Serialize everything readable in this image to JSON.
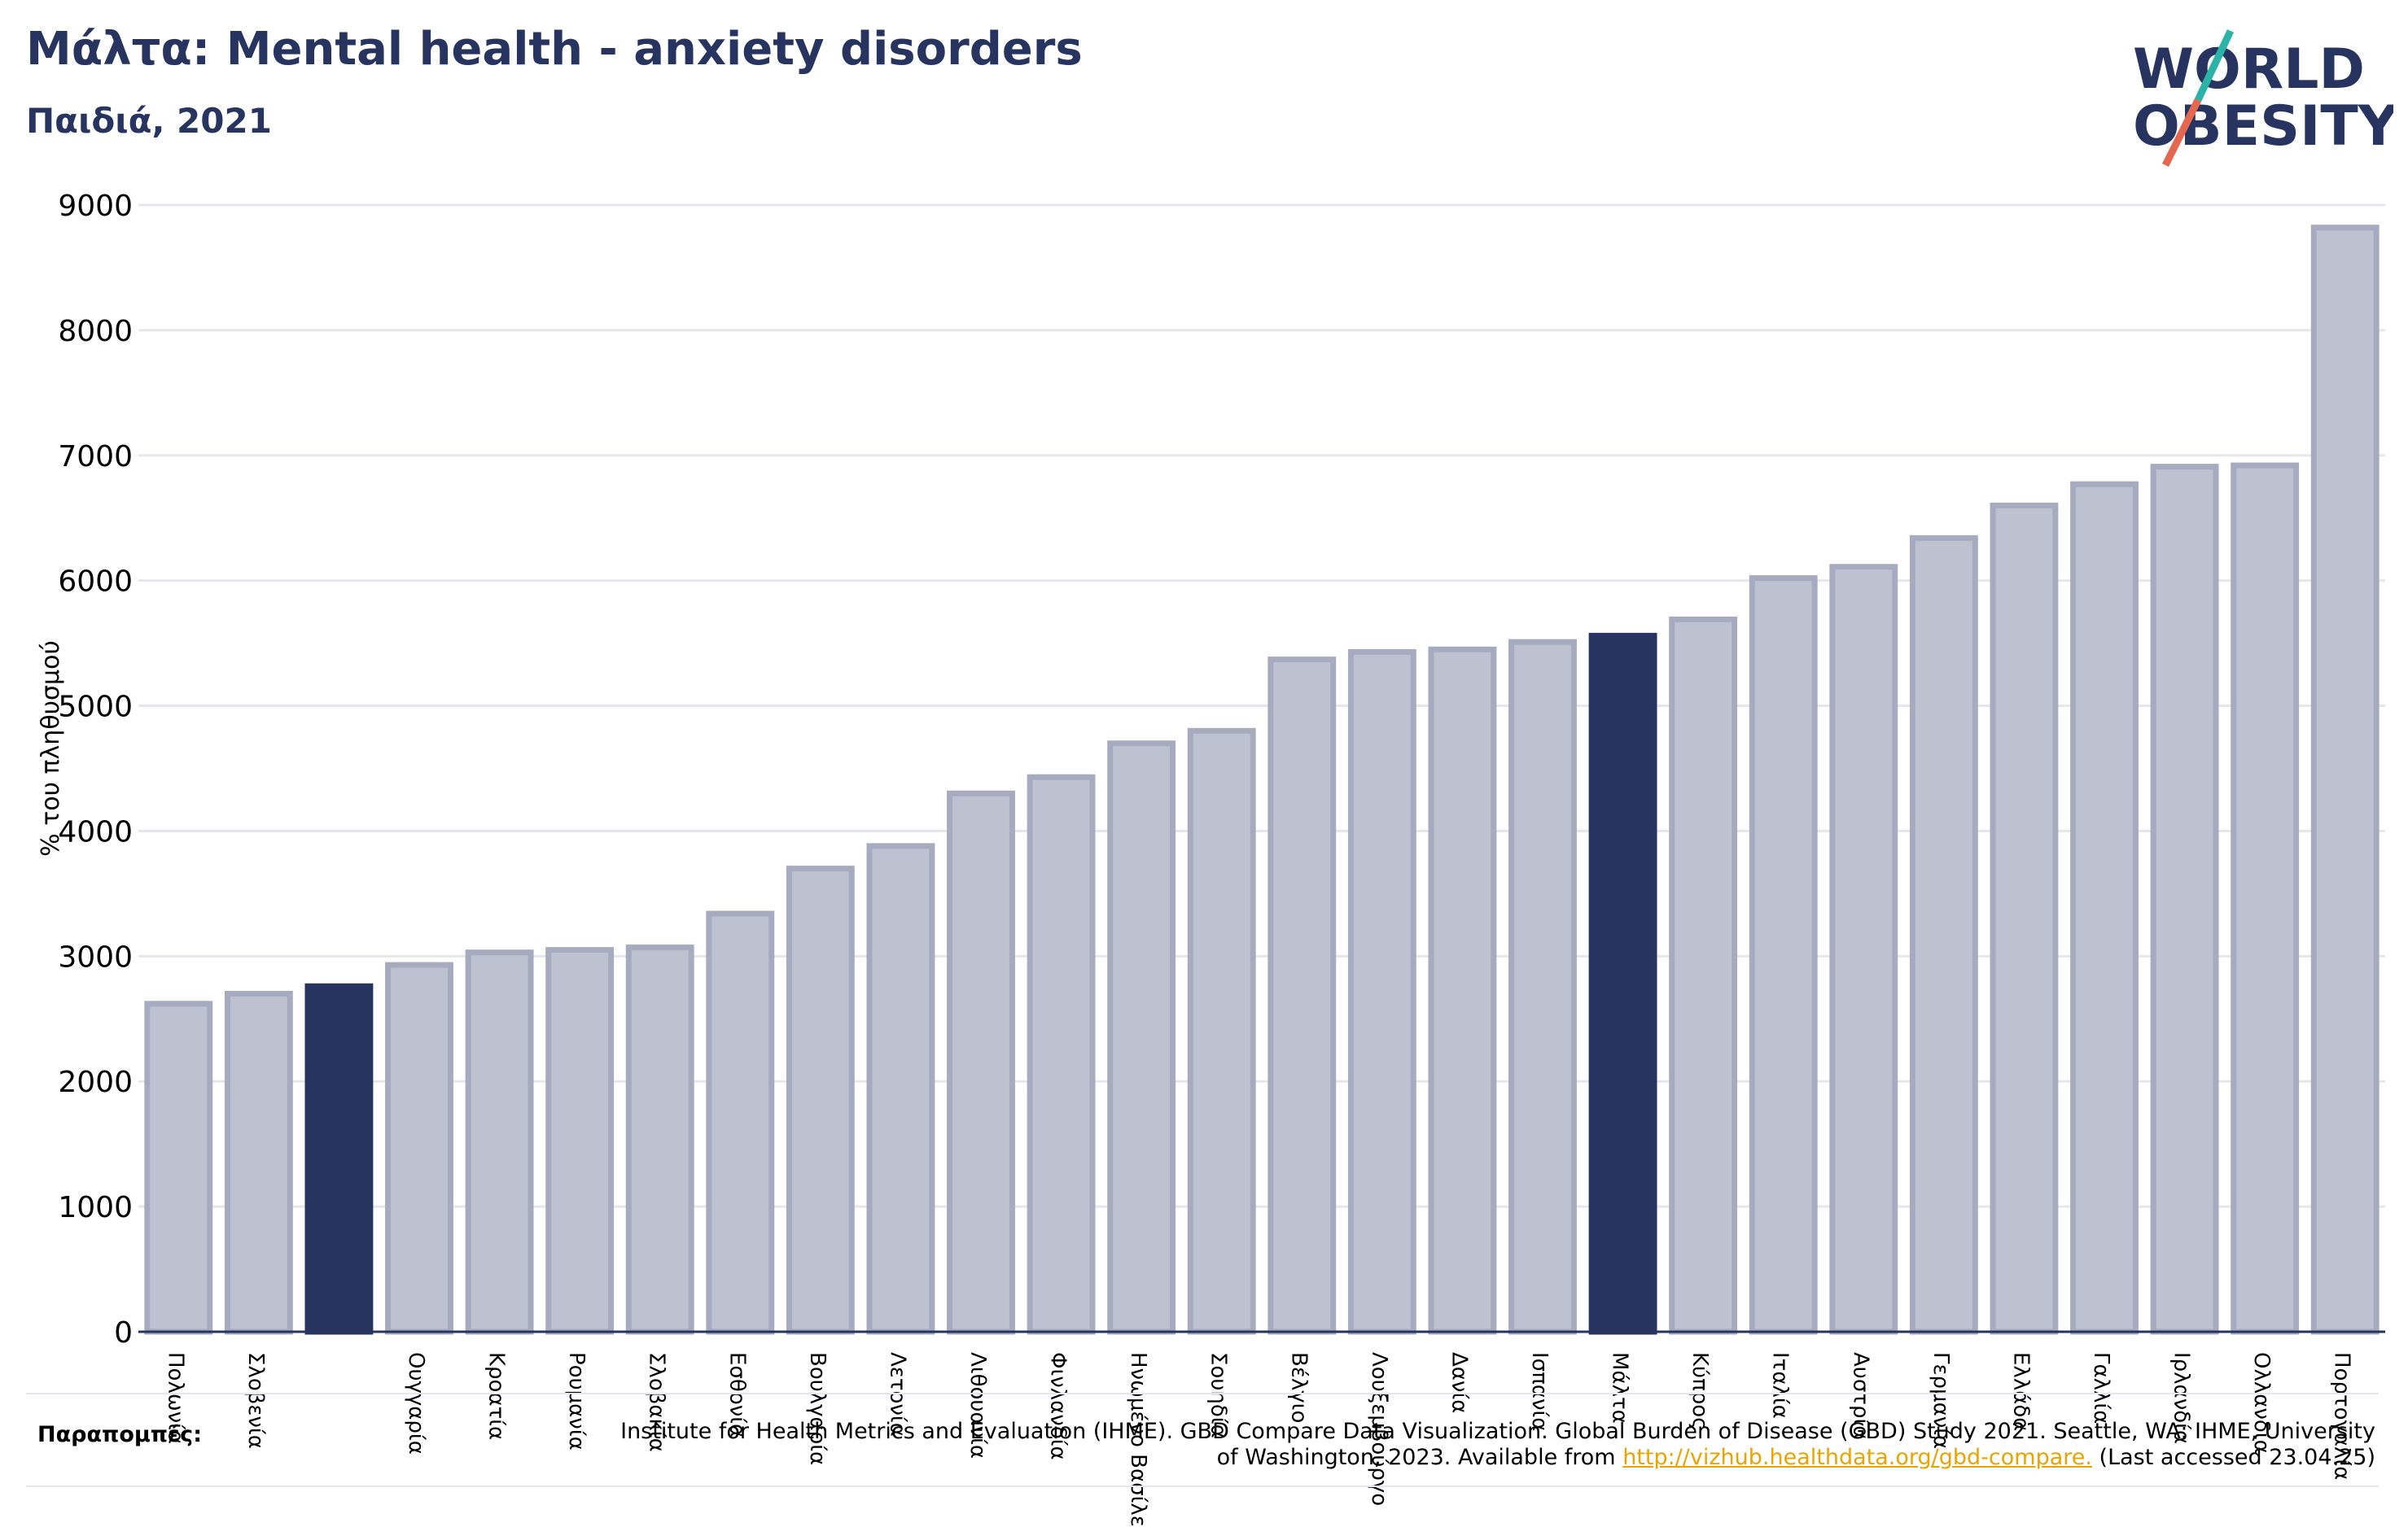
{
  "header": {
    "title": "Μάλτα: Mental health - anxiety disorders",
    "subtitle": "Παιδιά, 2021"
  },
  "logo": {
    "line1": "WORLD",
    "line2": "OBESITY"
  },
  "chart_data": {
    "type": "bar",
    "ylabel": "% του πληθυσμού",
    "ylim": [
      0,
      9000
    ],
    "yticks": [
      0,
      1000,
      2000,
      3000,
      4000,
      5000,
      6000,
      7000,
      8000,
      9000
    ],
    "grid": true,
    "categories": [
      "Πολωνία",
      "Σλοβενία",
      "",
      "Ουγγαρία",
      "Κροατία",
      "Ρουμανία",
      "Σλοβακία",
      "Εσθονία",
      "Βουλγαρία",
      "Λετονία",
      "Λιθουανία",
      "Φινλανδία",
      "Ηνωμένο Βασίλειο",
      "Σουηδία",
      "Βέλγιο",
      "Λουξεμβούργο",
      "Δανία",
      "Ισπανία",
      "Μάλτα",
      "Κύπρος",
      "Ιταλία",
      "Αυστρία",
      "Γερμανία",
      "Ελλάδα",
      "Γαλλία",
      "Ιρλανδία",
      "Ολλανδία",
      "Πορτογαλία"
    ],
    "values": [
      2620,
      2700,
      2760,
      2930,
      3030,
      3050,
      3070,
      3340,
      3700,
      3880,
      4300,
      4430,
      4700,
      4800,
      5370,
      5430,
      5450,
      5510,
      5560,
      5690,
      6020,
      6110,
      6340,
      6600,
      6770,
      6910,
      6920,
      8820
    ],
    "highlighted": [
      2,
      18
    ],
    "colors": {
      "bar": "#bec1cf",
      "bar_edge": "#a7abc0",
      "highlight": "#283460",
      "grid": "#e6e6ec",
      "axis": "#283460"
    }
  },
  "references": {
    "label": "Παραπομπές:",
    "text_before": "Institute for Health Metrics and Evaluation (IHME). GBD Compare Data Visualization. Global Burden of Disease (GBD) Study 2021. Seattle, WA: IHME, University of Washington, 2023. Available from ",
    "link": "http://vizhub.healthdata.org/gbd-compare.",
    "text_after": " (Last accessed 23.04.25)"
  }
}
